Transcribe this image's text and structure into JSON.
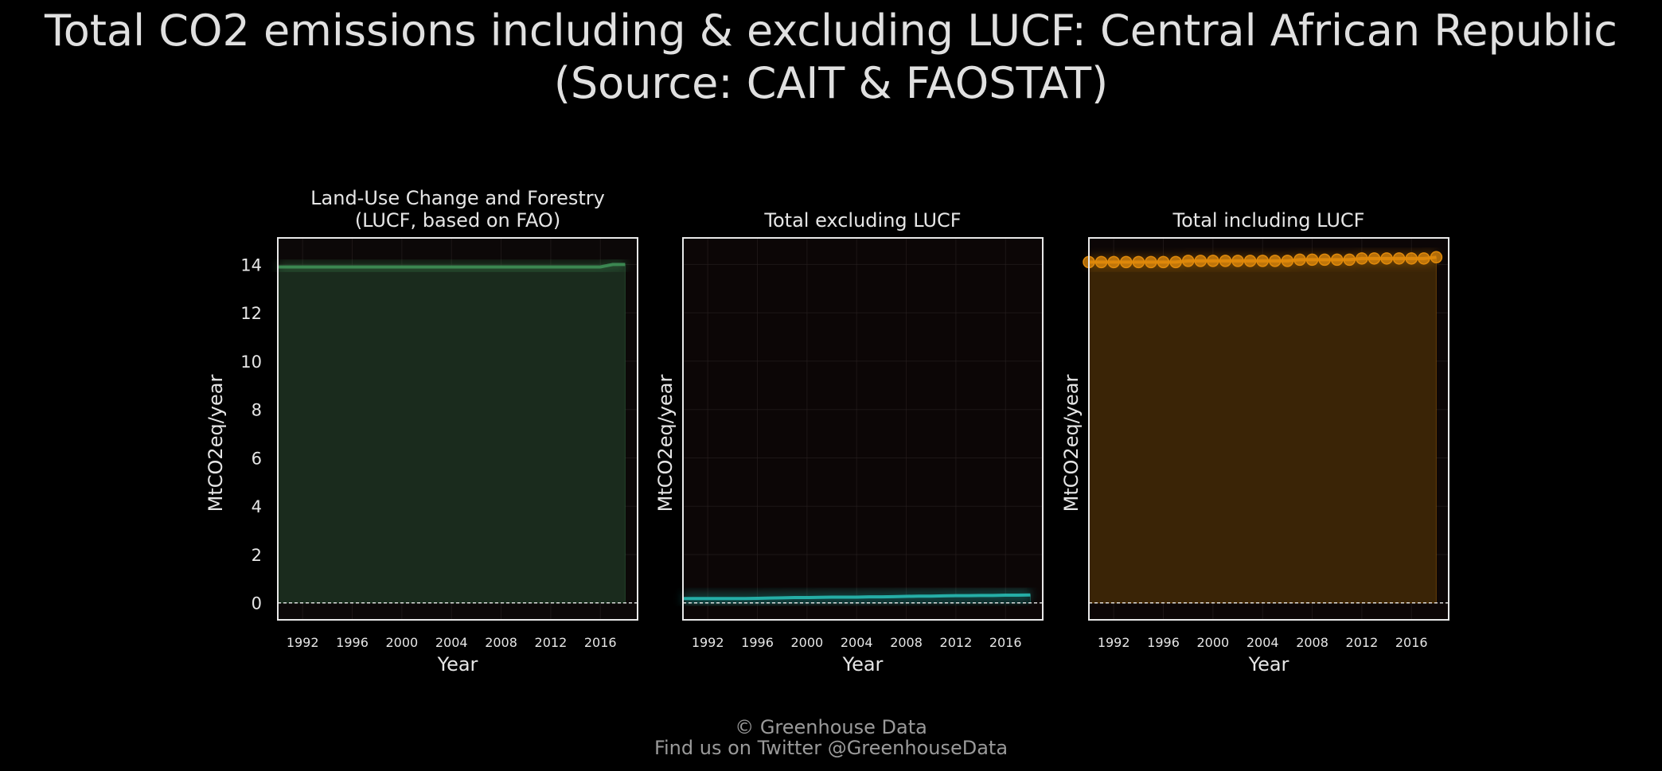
{
  "title": {
    "line1": "Total CO2 emissions including & excluding LUCF: Central African Republic",
    "line2": "(Source: CAIT & FAOSTAT)"
  },
  "footer": {
    "line1": "© Greenhouse Data",
    "line2": "Find us on Twitter @GreenhouseData"
  },
  "chart_data": [
    {
      "type": "area",
      "title_lines": [
        "Land-Use Change and Forestry",
        "(LUCF, based on FAO)"
      ],
      "xlabel": "Year",
      "ylabel": "MtCO2eq/year",
      "x_ticks": [
        1992,
        1996,
        2000,
        2004,
        2008,
        2012,
        2016
      ],
      "y_ticks": [
        0,
        2,
        4,
        6,
        8,
        10,
        12,
        14
      ],
      "xlim": [
        1990,
        2019
      ],
      "ylim": [
        -0.7,
        15.1
      ],
      "show_y_tick_labels": true,
      "markers": false,
      "color": "#3e8e55",
      "fill_color": "#1a2b1d",
      "bg_color": "#0c0808",
      "baseline": 0,
      "series": [
        {
          "x": [
            1990,
            1991,
            1992,
            1993,
            1994,
            1995,
            1996,
            1997,
            1998,
            1999,
            2000,
            2001,
            2002,
            2003,
            2004,
            2005,
            2006,
            2007,
            2008,
            2009,
            2010,
            2011,
            2012,
            2013,
            2014,
            2015,
            2016,
            2017,
            2018
          ],
          "y": [
            13.9,
            13.9,
            13.9,
            13.9,
            13.9,
            13.9,
            13.9,
            13.9,
            13.9,
            13.9,
            13.9,
            13.9,
            13.9,
            13.9,
            13.9,
            13.9,
            13.9,
            13.9,
            13.9,
            13.9,
            13.9,
            13.9,
            13.9,
            13.9,
            13.9,
            13.9,
            13.9,
            14.0,
            14.0
          ]
        }
      ]
    },
    {
      "type": "area",
      "title_lines": [
        "Total excluding LUCF"
      ],
      "xlabel": "Year",
      "ylabel": "MtCO2eq/year",
      "x_ticks": [
        1992,
        1996,
        2000,
        2004,
        2008,
        2012,
        2016
      ],
      "y_ticks": [
        0,
        2,
        4,
        6,
        8,
        10,
        12,
        14
      ],
      "xlim": [
        1990,
        2019
      ],
      "ylim": [
        -0.7,
        15.1
      ],
      "show_y_tick_labels": false,
      "markers": false,
      "color": "#27b8b0",
      "fill_color": "#0a1414",
      "bg_color": "#0c0606",
      "baseline": 0,
      "series": [
        {
          "x": [
            1990,
            1991,
            1992,
            1993,
            1994,
            1995,
            1996,
            1997,
            1998,
            1999,
            2000,
            2001,
            2002,
            2003,
            2004,
            2005,
            2006,
            2007,
            2008,
            2009,
            2010,
            2011,
            2012,
            2013,
            2014,
            2015,
            2016,
            2017,
            2018
          ],
          "y": [
            0.18,
            0.18,
            0.18,
            0.18,
            0.18,
            0.18,
            0.19,
            0.2,
            0.21,
            0.22,
            0.22,
            0.23,
            0.24,
            0.24,
            0.24,
            0.25,
            0.25,
            0.26,
            0.27,
            0.28,
            0.28,
            0.29,
            0.3,
            0.3,
            0.31,
            0.31,
            0.32,
            0.32,
            0.33
          ]
        }
      ]
    },
    {
      "type": "area",
      "title_lines": [
        "Total including LUCF"
      ],
      "xlabel": "Year",
      "ylabel": "MtCO2eq/year",
      "x_ticks": [
        1992,
        1996,
        2000,
        2004,
        2008,
        2012,
        2016
      ],
      "y_ticks": [
        0,
        2,
        4,
        6,
        8,
        10,
        12,
        14
      ],
      "xlim": [
        1990,
        2019
      ],
      "ylim": [
        -0.7,
        15.1
      ],
      "show_y_tick_labels": false,
      "markers": true,
      "color": "#e08a0b",
      "fill_color": "#3a2406",
      "bg_color": "#0c0606",
      "baseline": 0,
      "series": [
        {
          "x": [
            1990,
            1991,
            1992,
            1993,
            1994,
            1995,
            1996,
            1997,
            1998,
            1999,
            2000,
            2001,
            2002,
            2003,
            2004,
            2005,
            2006,
            2007,
            2008,
            2009,
            2010,
            2011,
            2012,
            2013,
            2014,
            2015,
            2016,
            2017,
            2018
          ],
          "y": [
            14.1,
            14.1,
            14.1,
            14.1,
            14.1,
            14.1,
            14.1,
            14.1,
            14.15,
            14.15,
            14.15,
            14.15,
            14.15,
            14.15,
            14.15,
            14.15,
            14.15,
            14.2,
            14.2,
            14.2,
            14.2,
            14.2,
            14.25,
            14.25,
            14.25,
            14.25,
            14.25,
            14.25,
            14.3
          ]
        }
      ]
    }
  ]
}
